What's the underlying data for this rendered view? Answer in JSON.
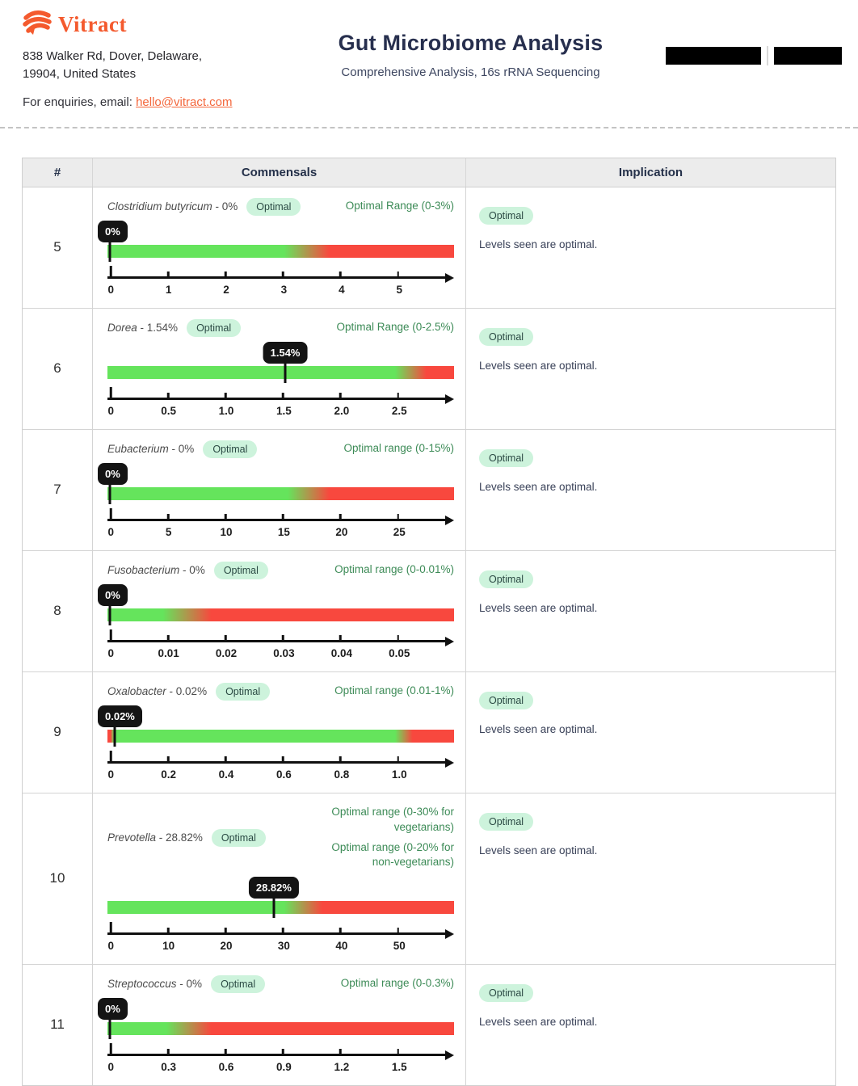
{
  "header": {
    "brand": "Vitract",
    "address_line1": "838 Walker Rd, Dover, Delaware,",
    "address_line2": "19904, United States",
    "enquiries_label": "For enquiries, email: ",
    "email": "hello@vitract.com",
    "title": "Gut Microbiome Analysis",
    "subtitle": "Comprehensive Analysis, 16s rRNA Sequencing"
  },
  "table": {
    "columns": [
      "#",
      "Commensals",
      "Implication"
    ],
    "colors": {
      "green": "#65e45c",
      "red": "#f8483e",
      "badge_bg": "#cdf3dc",
      "badge_text": "#2b4a44",
      "range_green": "#3d8b57"
    },
    "rows": [
      {
        "num": "5",
        "name": "Clostridium butyricum",
        "value_suffix": " - 0%",
        "status": "Optimal",
        "ranges": [
          "Optimal Range (0-3%)"
        ],
        "tooltip": "0%",
        "ticks": [
          "0",
          "1",
          "2",
          "3",
          "4",
          "5"
        ],
        "green_end": 51,
        "red_start": 64,
        "left_red": false,
        "marker_pct": 0.6,
        "tooltip_align": "left",
        "tall": false,
        "implication_status": "Optimal",
        "implication_text": "Levels seen are optimal."
      },
      {
        "num": "6",
        "name": "Dorea",
        "value_suffix": " - 1.54%",
        "status": "Optimal",
        "ranges": [
          "Optimal Range (0-2.5%)"
        ],
        "tooltip": "1.54%",
        "ticks": [
          "0",
          "0.5",
          "1.0",
          "1.5",
          "2.0",
          "2.5"
        ],
        "green_end": 83,
        "red_start": 92,
        "left_red": false,
        "marker_pct": 51.3,
        "tooltip_align": "center",
        "tall": false,
        "implication_status": "Optimal",
        "implication_text": "Levels seen are optimal."
      },
      {
        "num": "7",
        "name": "Eubacterium",
        "value_suffix": " - 0%",
        "status": "Optimal",
        "ranges": [
          "Optimal range (0-15%)"
        ],
        "tooltip": "0%",
        "ticks": [
          "0",
          "5",
          "10",
          "15",
          "20",
          "25"
        ],
        "green_end": 52,
        "red_start": 64,
        "left_red": false,
        "marker_pct": 0.6,
        "tooltip_align": "left",
        "tall": false,
        "implication_status": "Optimal",
        "implication_text": "Levels seen are optimal."
      },
      {
        "num": "8",
        "name": "Fusobacterium",
        "value_suffix": " - 0%",
        "status": "Optimal",
        "ranges": [
          "Optimal range (0-0.01%)"
        ],
        "tooltip": "0%",
        "ticks": [
          "0",
          "0.01",
          "0.02",
          "0.03",
          "0.04",
          "0.05"
        ],
        "green_end": 16,
        "red_start": 30,
        "left_red": false,
        "marker_pct": 0.6,
        "tooltip_align": "left",
        "tall": false,
        "implication_status": "Optimal",
        "implication_text": "Levels seen are optimal."
      },
      {
        "num": "9",
        "name": "Oxalobacter",
        "value_suffix": " - 0.02%",
        "status": "Optimal",
        "ranges": [
          "Optimal range (0.01-1%)"
        ],
        "tooltip": "0.02%",
        "ticks": [
          "0",
          "0.2",
          "0.4",
          "0.6",
          "0.8",
          "1.0"
        ],
        "green_end": 83,
        "red_start": 88,
        "left_red": true,
        "marker_pct": 2.2,
        "tooltip_align": "left",
        "tall": false,
        "implication_status": "Optimal",
        "implication_text": "Levels seen are optimal."
      },
      {
        "num": "10",
        "name": "Prevotella",
        "value_suffix": " - 28.82%",
        "status": "Optimal",
        "ranges": [
          "Optimal range (0-30% for vegetarians)",
          "Optimal range (0-20% for non-vegetarians)"
        ],
        "tooltip": "28.82%",
        "ticks": [
          "0",
          "10",
          "20",
          "30",
          "40",
          "50"
        ],
        "green_end": 51,
        "red_start": 62,
        "left_red": false,
        "marker_pct": 48,
        "tooltip_align": "center",
        "tall": true,
        "implication_status": "Optimal",
        "implication_text": "Levels seen are optimal."
      },
      {
        "num": "11",
        "name": "Streptococcus",
        "value_suffix": " - 0%",
        "status": "Optimal",
        "ranges": [
          "Optimal range (0-0.3%)"
        ],
        "tooltip": "0%",
        "ticks": [
          "0",
          "0.3",
          "0.6",
          "0.9",
          "1.2",
          "1.5"
        ],
        "green_end": 17,
        "red_start": 30,
        "left_red": false,
        "marker_pct": 0.6,
        "tooltip_align": "left",
        "tall": false,
        "implication_status": "Optimal",
        "implication_text": "Levels seen are optimal."
      }
    ]
  }
}
